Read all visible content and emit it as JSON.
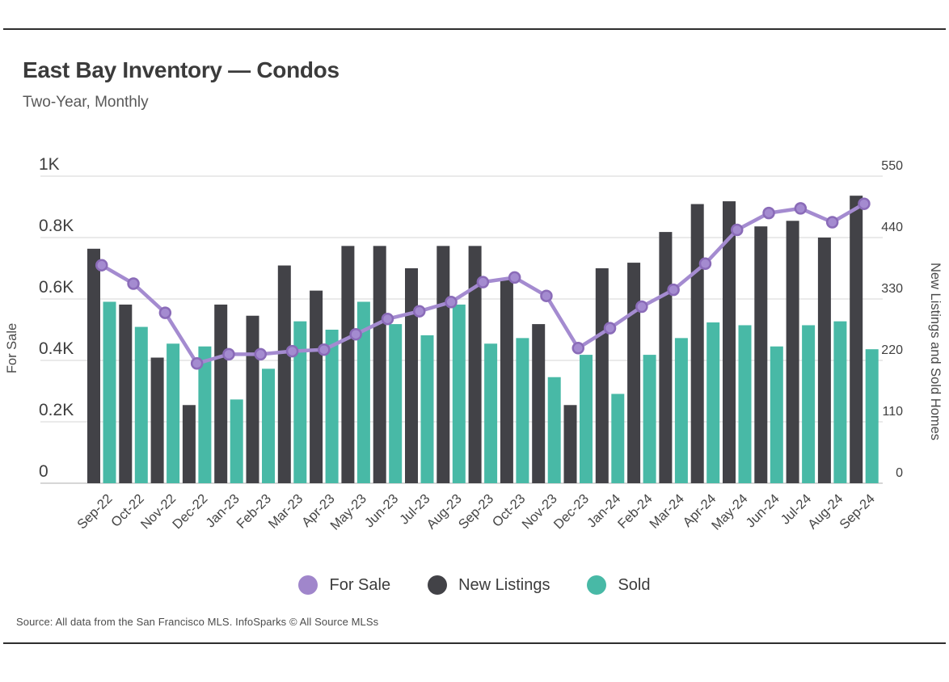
{
  "page": {
    "title": "East Bay Inventory — Condos",
    "subtitle": "Two-Year, Monthly",
    "source": "Source:  All data from the San Francisco MLS. InfoSparks © All Source MLSs"
  },
  "legend": {
    "items": [
      {
        "label": "For Sale",
        "color": "#a086cb"
      },
      {
        "label": "New Listings",
        "color": "#424247"
      },
      {
        "label": "Sold",
        "color": "#48b9a6"
      }
    ]
  },
  "chart_data": {
    "type": "combo",
    "title": "East Bay Inventory — Condos",
    "subtitle": "Two-Year, Monthly",
    "grid": true,
    "legend_position": "bottom",
    "categories": [
      "Sep-22",
      "Oct-22",
      "Nov-22",
      "Dec-22",
      "Jan-23",
      "Feb-23",
      "Mar-23",
      "Apr-23",
      "May-23",
      "Jun-23",
      "Jul-23",
      "Aug-23",
      "Sep-23",
      "Oct-23",
      "Nov-23",
      "Dec-23",
      "Jan-24",
      "Feb-24",
      "Mar-24",
      "Apr-24",
      "May-24",
      "Jun-24",
      "Jul-24",
      "Aug-24",
      "Sep-24"
    ],
    "axes": {
      "left": {
        "title": "For Sale",
        "ticks": [
          "0",
          "0.2K",
          "0.4K",
          "0.6K",
          "0.8K",
          "1K"
        ],
        "tick_values": [
          0,
          200,
          400,
          600,
          800,
          1000
        ],
        "range": [
          0,
          1000
        ]
      },
      "right": {
        "title": "New Listings and Sold Homes",
        "ticks": [
          "0",
          "110",
          "220",
          "330",
          "440",
          "550"
        ],
        "tick_values": [
          0,
          110,
          220,
          330,
          440,
          550
        ],
        "range": [
          0,
          550
        ]
      }
    },
    "series": [
      {
        "name": "For Sale",
        "type": "line",
        "axis": "left",
        "color": "#a48bd0",
        "point_stroke": "#8a6bb8",
        "values": [
          710,
          650,
          555,
          390,
          420,
          420,
          430,
          435,
          485,
          535,
          560,
          590,
          655,
          670,
          610,
          440,
          505,
          575,
          630,
          715,
          825,
          880,
          895,
          850,
          910
        ]
      },
      {
        "name": "New Listings",
        "type": "bar",
        "axis": "right",
        "color": "#424247",
        "values": [
          420,
          320,
          225,
          140,
          320,
          300,
          390,
          345,
          425,
          425,
          385,
          425,
          425,
          365,
          285,
          140,
          385,
          395,
          450,
          500,
          505,
          460,
          470,
          440,
          515
        ]
      },
      {
        "name": "Sold",
        "type": "bar",
        "axis": "right",
        "color": "#48b9a6",
        "values": [
          325,
          280,
          250,
          245,
          150,
          205,
          290,
          275,
          325,
          285,
          265,
          320,
          250,
          260,
          190,
          230,
          160,
          230,
          260,
          288,
          283,
          245,
          283,
          290,
          240
        ]
      }
    ]
  }
}
